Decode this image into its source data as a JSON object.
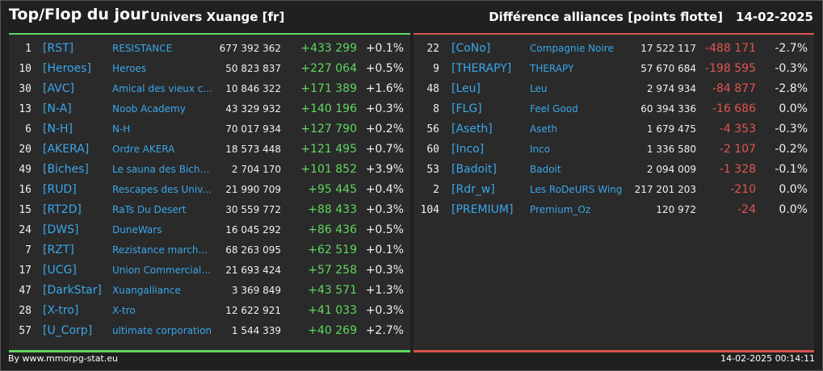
{
  "header": {
    "title": "Top/Flop du jour",
    "subtitle": "Univers Xuange [fr]",
    "metric": "Différence alliances [points flotte]",
    "date": "14-02-2025"
  },
  "top": [
    {
      "rank": "1",
      "tag": "[RST]",
      "name": "RESISTANCE",
      "points": "677 392 362",
      "diff": "+433 299",
      "pct": "+0.1%"
    },
    {
      "rank": "10",
      "tag": "[Heroes]",
      "name": "Heroes",
      "points": "50 823 837",
      "diff": "+227 064",
      "pct": "+0.5%"
    },
    {
      "rank": "30",
      "tag": "[AVC]",
      "name": "Amical des vieux co...",
      "points": "10 846 322",
      "diff": "+171 389",
      "pct": "+1.6%"
    },
    {
      "rank": "13",
      "tag": "[N-A]",
      "name": "Noob Academy",
      "points": "43 329 932",
      "diff": "+140 196",
      "pct": "+0.3%"
    },
    {
      "rank": "6",
      "tag": "[N-H]",
      "name": "N-H",
      "points": "70 017 934",
      "diff": "+127 790",
      "pct": "+0.2%"
    },
    {
      "rank": "20",
      "tag": "[AKERA]",
      "name": "Ordre AKERA",
      "points": "18 573 448",
      "diff": "+121 495",
      "pct": "+0.7%"
    },
    {
      "rank": "49",
      "tag": "[Biches]",
      "name": "Le sauna des Biche...",
      "points": "2 704 170",
      "diff": "+101 852",
      "pct": "+3.9%"
    },
    {
      "rank": "16",
      "tag": "[RUD]",
      "name": "Rescapes des Univ...",
      "points": "21 990 709",
      "diff": "+95 445",
      "pct": "+0.4%"
    },
    {
      "rank": "15",
      "tag": "[RT2D]",
      "name": "RaTs Du Desert",
      "points": "30 559 772",
      "diff": "+88 433",
      "pct": "+0.3%"
    },
    {
      "rank": "24",
      "tag": "[DWS]",
      "name": "DuneWars",
      "points": "16 045 292",
      "diff": "+86 436",
      "pct": "+0.5%"
    },
    {
      "rank": "7",
      "tag": "[RZT]",
      "name": "Rezistance march...",
      "points": "68 263 095",
      "diff": "+62 519",
      "pct": "+0.1%"
    },
    {
      "rank": "17",
      "tag": "[UCG]",
      "name": "Union Commerciale...",
      "points": "21 693 424",
      "diff": "+57 258",
      "pct": "+0.3%"
    },
    {
      "rank": "47",
      "tag": "[DarkStar]",
      "name": "Xuangalliance",
      "points": "3 369 849",
      "diff": "+43 571",
      "pct": "+1.3%"
    },
    {
      "rank": "28",
      "tag": "[X-tro]",
      "name": "X-tro",
      "points": "12 622 921",
      "diff": "+41 033",
      "pct": "+0.3%"
    },
    {
      "rank": "57",
      "tag": "[U_Corp]",
      "name": "ultimate corporation",
      "points": "1 544 339",
      "diff": "+40 269",
      "pct": "+2.7%"
    }
  ],
  "flop": [
    {
      "rank": "22",
      "tag": "[CoNo]",
      "name": "Compagnie Noire",
      "points": "17 522 117",
      "diff": "-488 171",
      "pct": "-2.7%"
    },
    {
      "rank": "9",
      "tag": "[THERAPY]",
      "name": "THERAPY",
      "points": "57 670 684",
      "diff": "-198 595",
      "pct": "-0.3%"
    },
    {
      "rank": "48",
      "tag": "[Leu]",
      "name": "Leu",
      "points": "2 974 934",
      "diff": "-84 877",
      "pct": "-2.8%"
    },
    {
      "rank": "8",
      "tag": "[FLG]",
      "name": "Feel Good",
      "points": "60 394 336",
      "diff": "-16 686",
      "pct": "0.0%"
    },
    {
      "rank": "56",
      "tag": "[Aseth]",
      "name": "Aseth",
      "points": "1 679 475",
      "diff": "-4 353",
      "pct": "-0.3%"
    },
    {
      "rank": "60",
      "tag": "[Inco]",
      "name": "Inco",
      "points": "1 336 580",
      "diff": "-2 107",
      "pct": "-0.2%"
    },
    {
      "rank": "53",
      "tag": "[Badoit]",
      "name": "Badoit",
      "points": "2 094 009",
      "diff": "-1 328",
      "pct": "-0.1%"
    },
    {
      "rank": "2",
      "tag": "[Rdr_w]",
      "name": "Les RoDeURS Wing",
      "points": "217 201 203",
      "diff": "-210",
      "pct": "0.0%"
    },
    {
      "rank": "104",
      "tag": "[PREMIUM]",
      "name": "Premium_Oz",
      "points": "120 972",
      "diff": "-24",
      "pct": "0.0%"
    }
  ],
  "footer": {
    "credit": "By www.mmorpg-stat.eu",
    "timestamp": "14-02-2025 00:14:11"
  },
  "colors": {
    "positive": "#5fd75f",
    "negative": "#e05550",
    "link": "#39a7ea"
  }
}
